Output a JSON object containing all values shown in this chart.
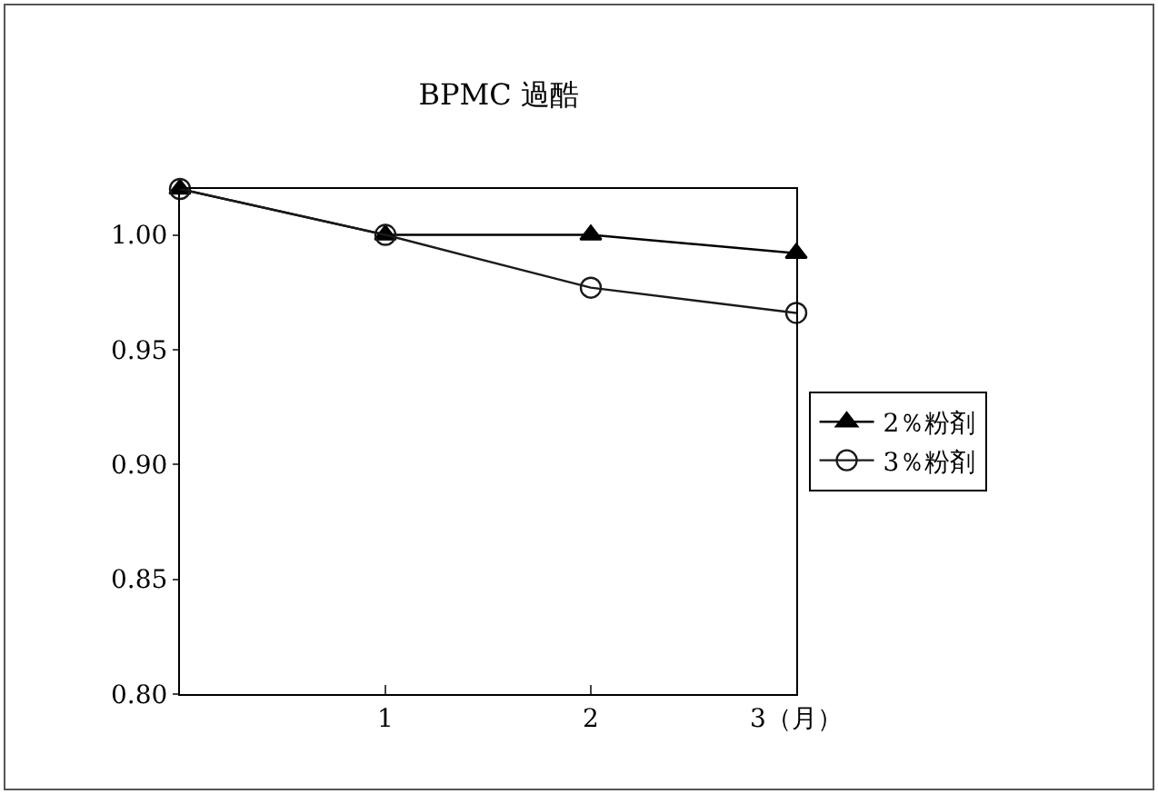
{
  "chart_data": {
    "type": "line",
    "title": "BPMC 過酷",
    "x": [
      0,
      1,
      2,
      3
    ],
    "series": [
      {
        "name": "2％粉剤",
        "color": "#000000",
        "marker": "triangle",
        "values": [
          1.02,
          1.0,
          1.0,
          0.992
        ]
      },
      {
        "name": "3％粉剤",
        "color": "#1a1a1a",
        "marker": "circle",
        "values": [
          1.02,
          1.0,
          0.977,
          0.966
        ]
      }
    ],
    "xlim": [
      0,
      3
    ],
    "xticks": [
      1,
      2,
      {
        "value": 3,
        "label": "3（月）"
      }
    ],
    "ylim": [
      0.8,
      1.02
    ],
    "yticks": [
      {
        "value": 0.8,
        "label": "0.80"
      },
      {
        "value": 0.85,
        "label": "0.85"
      },
      {
        "value": 0.9,
        "label": "0.90"
      },
      {
        "value": 0.95,
        "label": "0.95"
      },
      {
        "value": 1.0,
        "label": "1.00"
      }
    ],
    "grid": false,
    "legend": "right",
    "line_style": "solid"
  }
}
